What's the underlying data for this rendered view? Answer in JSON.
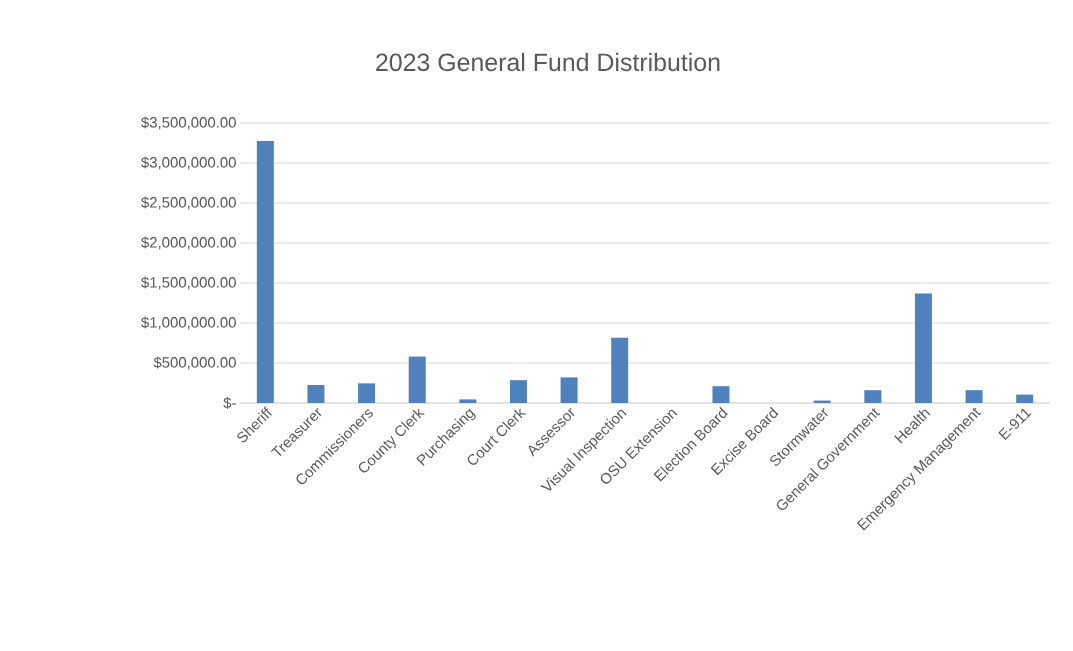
{
  "chart_data": {
    "type": "bar",
    "title": "2023 General Fund Distribution",
    "categories": [
      "Sheriff",
      "Treasurer",
      "Commissioners",
      "County Clerk",
      "Purchasing",
      "Court Clerk",
      "Assessor",
      "Visual Inspection",
      "OSU Extension",
      "Election Board",
      "Excise Board",
      "Stormwater",
      "General Government",
      "Health",
      "Emergency Management",
      "E-911"
    ],
    "values": [
      3275000,
      225000,
      245000,
      580000,
      45000,
      285000,
      320000,
      815000,
      0,
      210000,
      0,
      30000,
      160000,
      1370000,
      160000,
      105000
    ],
    "color": "#4f81bd",
    "ylim": [
      0,
      3500000
    ],
    "yticks": [
      {
        "value": 0,
        "label": "$-"
      },
      {
        "value": 500000,
        "label": "$500,000.00"
      },
      {
        "value": 1000000,
        "label": "$1,000,000.00"
      },
      {
        "value": 1500000,
        "label": "$1,500,000.00"
      },
      {
        "value": 2000000,
        "label": "$2,000,000.00"
      },
      {
        "value": 2500000,
        "label": "$2,500,000.00"
      },
      {
        "value": 3000000,
        "label": "$3,000,000.00"
      },
      {
        "value": 3500000,
        "label": "$3,500,000.00"
      }
    ],
    "grid": "y"
  }
}
